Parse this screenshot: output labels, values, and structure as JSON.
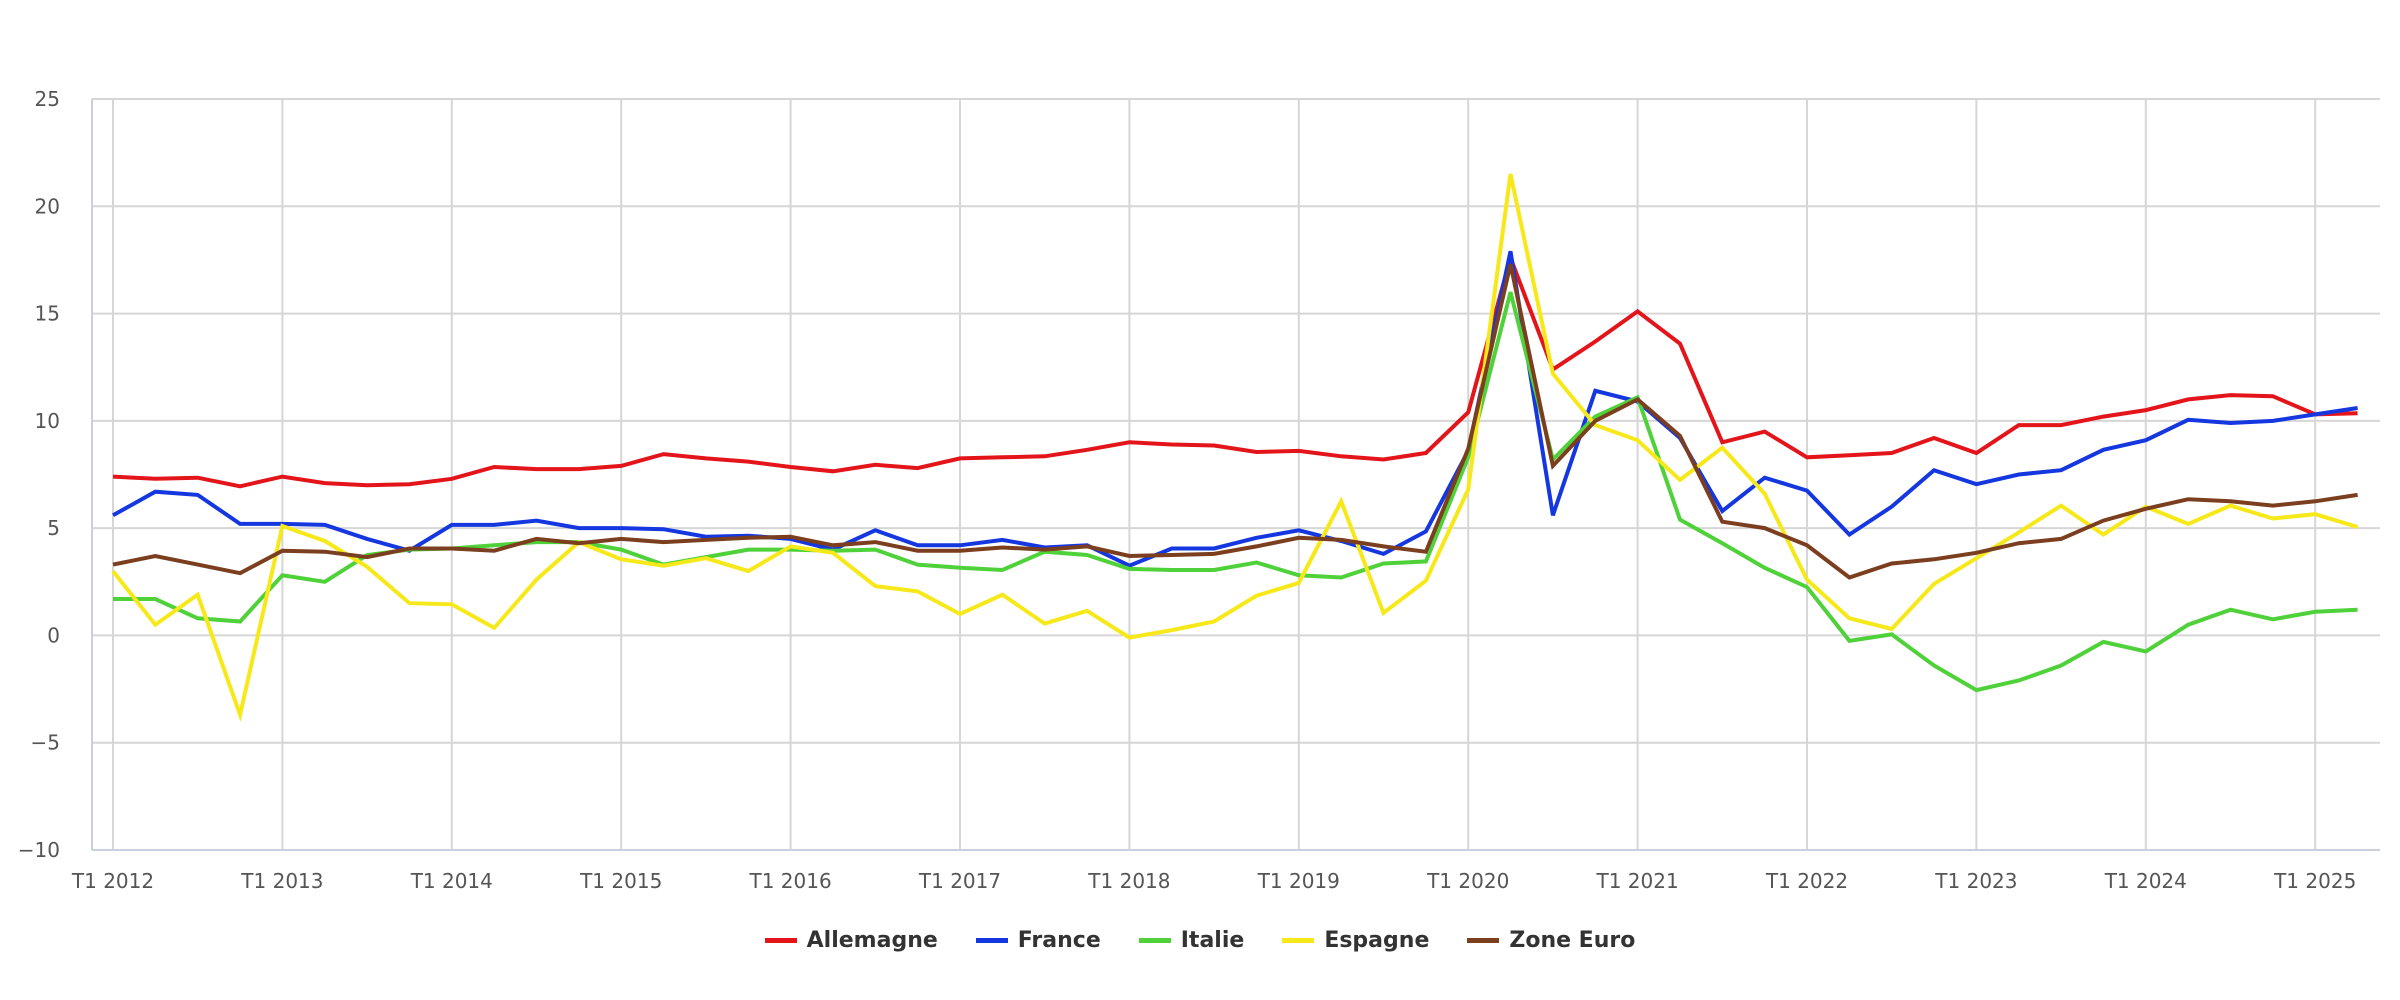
{
  "chart_data": {
    "type": "line",
    "title": "",
    "xlabel": "",
    "ylabel": "",
    "ylim": [
      -10,
      25
    ],
    "yticks": [
      -10,
      -5,
      0,
      5,
      10,
      15,
      20,
      25
    ],
    "grid": true,
    "legend_position": "bottom-center",
    "x_tick_labels": [
      "T1 2012",
      "T1 2013",
      "T1 2014",
      "T1 2015",
      "T1 2016",
      "T1 2017",
      "T1 2018",
      "T1 2019",
      "T1 2020",
      "T1 2021",
      "T1 2022",
      "T1 2023",
      "T1 2024",
      "T1 2025"
    ],
    "x": [
      "T1 2012",
      "T2 2012",
      "T3 2012",
      "T4 2012",
      "T1 2013",
      "T2 2013",
      "T3 2013",
      "T4 2013",
      "T1 2014",
      "T2 2014",
      "T3 2014",
      "T4 2014",
      "T1 2015",
      "T2 2015",
      "T3 2015",
      "T4 2015",
      "T1 2016",
      "T2 2016",
      "T3 2016",
      "T4 2016",
      "T1 2017",
      "T2 2017",
      "T3 2017",
      "T4 2017",
      "T1 2018",
      "T2 2018",
      "T3 2018",
      "T4 2018",
      "T1 2019",
      "T2 2019",
      "T3 2019",
      "T4 2019",
      "T1 2020",
      "T2 2020",
      "T3 2020",
      "T4 2020",
      "T1 2021",
      "T2 2021",
      "T3 2021",
      "T4 2021",
      "T1 2022",
      "T2 2022",
      "T3 2022",
      "T4 2022",
      "T1 2023",
      "T2 2023",
      "T3 2023",
      "T4 2023",
      "T1 2024",
      "T2 2024",
      "T3 2024",
      "T4 2024",
      "T1 2025",
      "T2 2025"
    ],
    "series": [
      {
        "name": "Allemagne",
        "color": "#e3151a",
        "values": [
          7.4,
          7.3,
          7.35,
          6.95,
          7.4,
          7.1,
          7.0,
          7.05,
          7.3,
          7.85,
          7.75,
          7.75,
          7.9,
          8.45,
          8.25,
          8.1,
          7.85,
          7.65,
          7.95,
          7.8,
          8.25,
          8.3,
          8.35,
          8.65,
          9.0,
          8.9,
          8.85,
          8.55,
          8.6,
          8.35,
          8.2,
          8.5,
          10.4,
          17.6,
          12.4,
          13.7,
          15.1,
          13.6,
          9.0,
          9.5,
          8.3,
          8.4,
          8.5,
          9.2,
          8.5,
          9.8,
          9.8,
          10.2,
          10.5,
          11.0,
          11.2,
          11.15,
          10.3,
          10.35
        ]
      },
      {
        "name": "France",
        "color": "#1537e0",
        "values": [
          5.6,
          6.7,
          6.55,
          5.2,
          5.2,
          5.15,
          4.5,
          3.95,
          5.15,
          5.15,
          5.35,
          5.0,
          5.0,
          4.95,
          4.6,
          4.65,
          4.5,
          4.0,
          4.9,
          4.2,
          4.2,
          4.45,
          4.1,
          4.2,
          3.25,
          4.05,
          4.05,
          4.55,
          4.9,
          4.4,
          3.8,
          4.85,
          8.6,
          17.9,
          5.6,
          11.4,
          10.9,
          9.2,
          5.8,
          7.35,
          6.75,
          4.7,
          6.0,
          7.7,
          7.05,
          7.5,
          7.7,
          8.65,
          9.1,
          10.05,
          9.9,
          10.0,
          10.3,
          10.6
        ]
      },
      {
        "name": "Italie",
        "color": "#4fd13a",
        "values": [
          1.7,
          1.7,
          0.8,
          0.65,
          2.8,
          2.5,
          3.75,
          4.0,
          4.05,
          4.2,
          4.35,
          4.35,
          4.0,
          3.3,
          3.65,
          4.0,
          4.0,
          3.95,
          4.0,
          3.3,
          3.15,
          3.05,
          3.9,
          3.75,
          3.1,
          3.05,
          3.05,
          3.4,
          2.8,
          2.7,
          3.35,
          3.45,
          8.3,
          16.0,
          8.2,
          10.2,
          11.1,
          5.4,
          4.3,
          3.15,
          2.25,
          -0.25,
          0.05,
          -1.4,
          -2.55,
          -2.1,
          -1.4,
          -0.3,
          -0.75,
          0.5,
          1.2,
          0.75,
          1.1,
          1.2
        ]
      },
      {
        "name": "Espagne",
        "color": "#f7e81a",
        "values": [
          3.0,
          0.5,
          1.9,
          -3.7,
          5.1,
          4.4,
          3.2,
          1.5,
          1.45,
          0.35,
          2.6,
          4.35,
          3.55,
          3.25,
          3.6,
          3.0,
          4.15,
          3.85,
          2.3,
          2.05,
          1.0,
          1.9,
          0.55,
          1.15,
          -0.1,
          0.25,
          0.65,
          1.85,
          2.45,
          6.25,
          1.05,
          2.55,
          6.8,
          21.5,
          12.2,
          9.8,
          9.1,
          7.25,
          8.75,
          6.6,
          2.6,
          0.8,
          0.3,
          2.4,
          3.6,
          4.8,
          6.05,
          4.7,
          6.0,
          5.2,
          6.05,
          5.45,
          5.65,
          5.05
        ]
      },
      {
        "name": "Zone Euro",
        "color": "#7b3f1f",
        "values": [
          3.3,
          3.7,
          3.3,
          2.9,
          3.95,
          3.9,
          3.65,
          4.05,
          4.05,
          3.95,
          4.5,
          4.3,
          4.5,
          4.35,
          4.45,
          4.55,
          4.6,
          4.2,
          4.35,
          3.95,
          3.95,
          4.1,
          4.0,
          4.15,
          3.7,
          3.75,
          3.8,
          4.15,
          4.55,
          4.45,
          4.15,
          3.9,
          8.7,
          17.3,
          7.9,
          10.0,
          11.0,
          9.3,
          5.3,
          5.0,
          4.2,
          2.7,
          3.35,
          3.55,
          3.85,
          4.3,
          4.5,
          5.35,
          5.9,
          6.35,
          6.25,
          6.05,
          6.25,
          6.55
        ]
      }
    ]
  },
  "legend": {
    "items": [
      {
        "label": "Allemagne",
        "color": "#e3151a"
      },
      {
        "label": "France",
        "color": "#1537e0"
      },
      {
        "label": "Italie",
        "color": "#4fd13a"
      },
      {
        "label": "Espagne",
        "color": "#f7e81a"
      },
      {
        "label": "Zone Euro",
        "color": "#7b3f1f"
      }
    ]
  },
  "style": {
    "grid_color": "#d6d6d6",
    "axis_color": "#c7d0dc",
    "tick_text_color": "#555555"
  }
}
